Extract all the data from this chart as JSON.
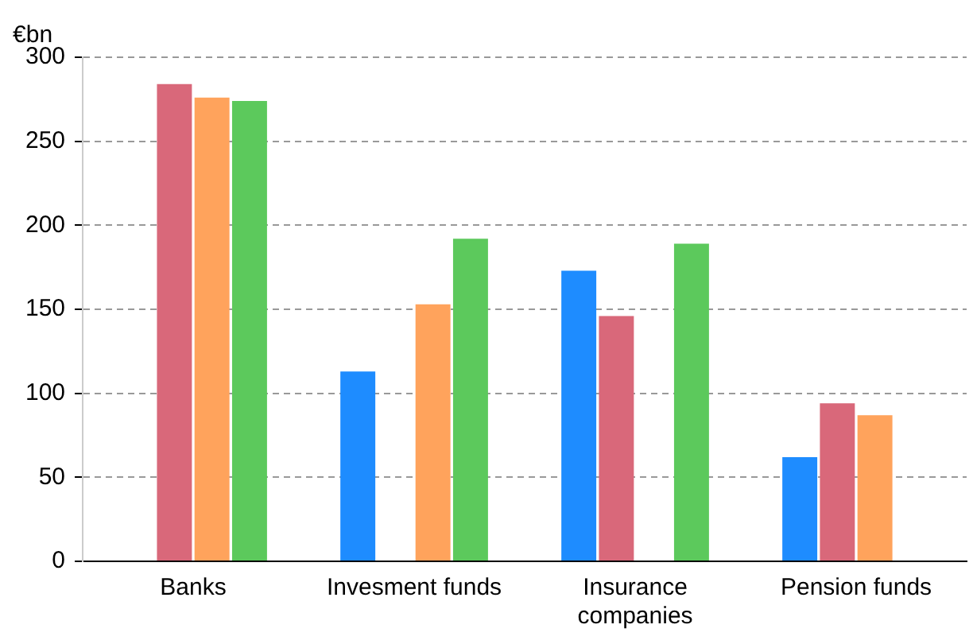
{
  "chart_data": {
    "type": "bar",
    "ylabel": "€bn",
    "categories": [
      "Banks",
      "Invesment funds",
      "Insurance\ncompanies",
      "Pension funds"
    ],
    "series": [
      {
        "color": "#1e8cff",
        "values": [
          null,
          113,
          173,
          62
        ]
      },
      {
        "color": "#d9687a",
        "values": [
          284,
          null,
          146,
          94
        ]
      },
      {
        "color": "#ffa35c",
        "values": [
          276,
          153,
          null,
          87
        ]
      },
      {
        "color": "#5cc95c",
        "values": [
          274,
          192,
          189,
          null
        ]
      }
    ],
    "ylim": [
      0,
      300
    ],
    "yticks": [
      0,
      50,
      100,
      150,
      200,
      250,
      300
    ],
    "grid": "y",
    "legend": false
  }
}
